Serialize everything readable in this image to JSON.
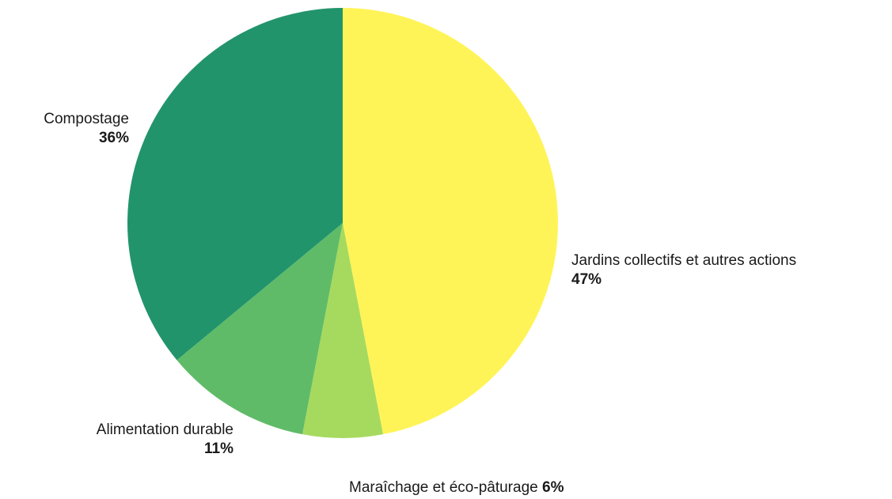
{
  "chart_data": {
    "type": "pie",
    "title": "",
    "slices": [
      {
        "label": "Jardins collectifs et autres actions",
        "value": 47,
        "pct_label": "47%",
        "color": "#fff457"
      },
      {
        "label": "Maraîchage et éco-pâturage",
        "value": 6,
        "pct_label": "6%",
        "color": "#a6da5e"
      },
      {
        "label": "Alimentation durable",
        "value": 11,
        "pct_label": "11%",
        "color": "#5fbb68"
      },
      {
        "label": "Compostage",
        "value": 36,
        "pct_label": "36%",
        "color": "#22946c"
      }
    ],
    "start_angle": "12 o'clock",
    "direction": "clockwise",
    "legend": "none"
  }
}
